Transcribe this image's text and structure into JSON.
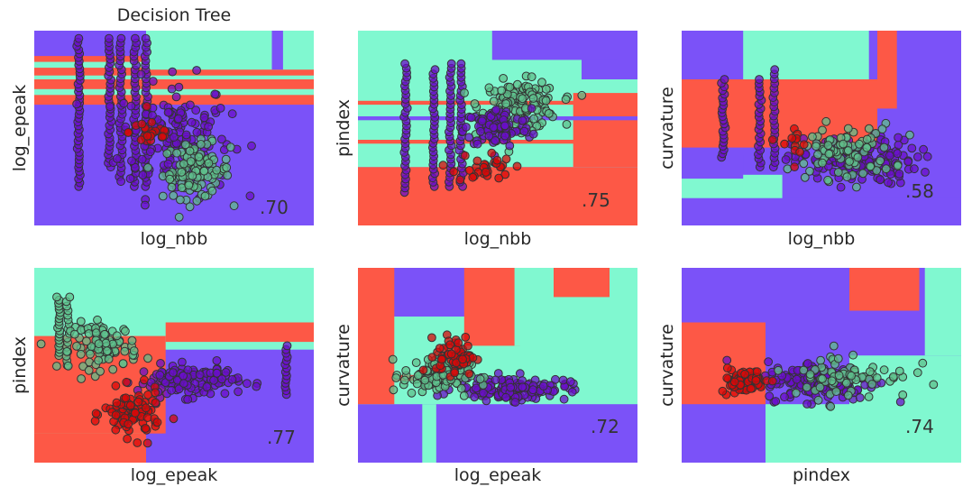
{
  "colors": {
    "class_0": "#7b52f8",
    "class_1": "#80f8d0",
    "class_2": "#fd5846",
    "dot_0": "#6a0fc8",
    "dot_1": "#5fc08c",
    "dot_2": "#d80808",
    "edge": "#333333"
  },
  "chart_data": [
    {
      "type": "scatter",
      "title": "Decision Tree",
      "xlabel": "log_nbb",
      "ylabel": "log_epeak",
      "score": ".70",
      "grid": false,
      "background": "decision-boundary",
      "regions": [
        [
          0,
          0,
          1,
          0.62,
          0
        ],
        [
          0,
          0.62,
          1,
          0.25,
          2
        ],
        [
          0,
          0.67,
          1,
          0.03,
          1
        ],
        [
          0,
          0.75,
          1,
          0.02,
          1
        ],
        [
          0,
          0.81,
          1,
          0.03,
          1
        ],
        [
          0.4,
          0.8,
          0.6,
          0.2,
          1
        ],
        [
          0,
          0.88,
          0.4,
          0.12,
          0
        ],
        [
          0.85,
          0.8,
          0.04,
          0.2,
          0
        ]
      ],
      "cols": [
        {
          "x": 0.16,
          "y0": 0.2,
          "y1": 0.96,
          "n": 40,
          "c": 0
        },
        {
          "x": 0.27,
          "y0": 0.3,
          "y1": 0.96,
          "n": 32,
          "c": 0
        },
        {
          "x": 0.31,
          "y0": 0.25,
          "y1": 0.96,
          "n": 32,
          "c": 0
        },
        {
          "x": 0.36,
          "y0": 0.2,
          "y1": 0.96,
          "n": 34,
          "c": 0
        },
        {
          "x": 0.4,
          "y0": 0.2,
          "y1": 0.96,
          "n": 34,
          "c": 0
        }
      ],
      "clusters": [
        {
          "x": 0.5,
          "y": 0.45,
          "sx": 0.2,
          "sy": 0.3,
          "n": 150,
          "c": 0
        },
        {
          "x": 0.58,
          "y": 0.28,
          "sx": 0.12,
          "sy": 0.14,
          "n": 110,
          "c": 1
        },
        {
          "x": 0.42,
          "y": 0.48,
          "sx": 0.08,
          "sy": 0.08,
          "n": 25,
          "c": 2
        }
      ]
    },
    {
      "type": "scatter",
      "title": "",
      "xlabel": "log_nbb",
      "ylabel": "pindex",
      "score": ".75",
      "grid": false,
      "background": "decision-boundary",
      "regions": [
        [
          0,
          0,
          1,
          0.3,
          2
        ],
        [
          0,
          0.3,
          1,
          0.7,
          1
        ],
        [
          0.77,
          0.3,
          0.23,
          0.38,
          2
        ],
        [
          0.8,
          0.75,
          0.2,
          0.25,
          0
        ],
        [
          0.48,
          0.85,
          0.45,
          0.15,
          0
        ],
        [
          0,
          0.42,
          1,
          0.02,
          2
        ],
        [
          0,
          0.54,
          1,
          0.02,
          0
        ],
        [
          0,
          0.62,
          1,
          0.02,
          2
        ]
      ],
      "cols": [
        {
          "x": 0.17,
          "y0": 0.17,
          "y1": 0.83,
          "n": 30,
          "c": 0
        },
        {
          "x": 0.27,
          "y0": 0.2,
          "y1": 0.8,
          "n": 28,
          "c": 0
        },
        {
          "x": 0.33,
          "y0": 0.2,
          "y1": 0.83,
          "n": 28,
          "c": 0
        },
        {
          "x": 0.37,
          "y0": 0.2,
          "y1": 0.83,
          "n": 28,
          "c": 0
        }
      ],
      "clusters": [
        {
          "x": 0.58,
          "y": 0.62,
          "sx": 0.14,
          "sy": 0.12,
          "n": 140,
          "c": 1
        },
        {
          "x": 0.5,
          "y": 0.5,
          "sx": 0.12,
          "sy": 0.1,
          "n": 110,
          "c": 0
        },
        {
          "x": 0.45,
          "y": 0.3,
          "sx": 0.1,
          "sy": 0.08,
          "n": 30,
          "c": 2
        }
      ]
    },
    {
      "type": "scatter",
      "title": "",
      "xlabel": "log_nbb",
      "ylabel": "curvature",
      "score": ".58",
      "grid": false,
      "background": "decision-boundary",
      "regions": [
        [
          0,
          0,
          1,
          0.14,
          0
        ],
        [
          0,
          0.14,
          0.36,
          0.12,
          1
        ],
        [
          0,
          0.4,
          1,
          0.35,
          2
        ],
        [
          0.7,
          0.26,
          0.3,
          0.6,
          0
        ],
        [
          0.22,
          0.75,
          0.45,
          0.25,
          1
        ],
        [
          0.7,
          0.6,
          0.07,
          0.4,
          2
        ],
        [
          0,
          0.24,
          0.22,
          0.12,
          0
        ]
      ],
      "cols": [
        {
          "x": 0.15,
          "y0": 0.35,
          "y1": 0.75,
          "n": 22,
          "c": 0
        },
        {
          "x": 0.28,
          "y0": 0.3,
          "y1": 0.75,
          "n": 22,
          "c": 0
        },
        {
          "x": 0.33,
          "y0": 0.3,
          "y1": 0.8,
          "n": 22,
          "c": 0
        }
      ],
      "clusters": [
        {
          "x": 0.62,
          "y": 0.33,
          "sx": 0.22,
          "sy": 0.12,
          "n": 150,
          "c": 0
        },
        {
          "x": 0.58,
          "y": 0.38,
          "sx": 0.18,
          "sy": 0.14,
          "n": 90,
          "c": 1
        },
        {
          "x": 0.4,
          "y": 0.42,
          "sx": 0.05,
          "sy": 0.1,
          "n": 12,
          "c": 2
        }
      ]
    },
    {
      "type": "scatter",
      "title": "",
      "xlabel": "log_epeak",
      "ylabel": "pindex",
      "score": ".77",
      "grid": false,
      "background": "decision-boundary",
      "regions": [
        [
          0,
          0,
          1,
          1,
          1
        ],
        [
          0.4,
          0,
          0.6,
          0.58,
          0
        ],
        [
          0,
          0.15,
          0.47,
          0.5,
          2
        ],
        [
          0.47,
          0.62,
          0.53,
          0.1,
          2
        ],
        [
          0,
          0,
          0.4,
          0.15,
          2
        ],
        [
          0.38,
          0.15,
          0.08,
          0.3,
          2
        ]
      ],
      "cols": [
        {
          "x": 0.09,
          "y0": 0.55,
          "y1": 0.85,
          "n": 20,
          "c": 1
        },
        {
          "x": 0.12,
          "y0": 0.5,
          "y1": 0.85,
          "n": 16,
          "c": 1
        },
        {
          "x": 0.9,
          "y0": 0.35,
          "y1": 0.6,
          "n": 14,
          "c": 0
        }
      ],
      "clusters": [
        {
          "x": 0.25,
          "y": 0.6,
          "sx": 0.12,
          "sy": 0.12,
          "n": 90,
          "c": 1
        },
        {
          "x": 0.55,
          "y": 0.42,
          "sx": 0.18,
          "sy": 0.08,
          "n": 130,
          "c": 0
        },
        {
          "x": 0.35,
          "y": 0.25,
          "sx": 0.1,
          "sy": 0.12,
          "n": 90,
          "c": 2
        }
      ]
    },
    {
      "type": "scatter",
      "title": "",
      "xlabel": "log_epeak",
      "ylabel": "curvature",
      "score": ".72",
      "grid": false,
      "background": "decision-boundary",
      "regions": [
        [
          0,
          0,
          1,
          0.3,
          0
        ],
        [
          0,
          0.3,
          1,
          0.45,
          1
        ],
        [
          0,
          0.3,
          0.13,
          0.7,
          2
        ],
        [
          0.38,
          0.6,
          0.2,
          0.4,
          2
        ],
        [
          0.56,
          0.6,
          0.44,
          0.4,
          1
        ],
        [
          0.7,
          0.85,
          0.2,
          0.15,
          2
        ],
        [
          0,
          0.42,
          0.4,
          0.03,
          2
        ],
        [
          0.23,
          0,
          0.05,
          0.3,
          1
        ]
      ],
      "cols": [],
      "clusters": [
        {
          "x": 0.55,
          "y": 0.38,
          "sx": 0.2,
          "sy": 0.06,
          "n": 150,
          "c": 0
        },
        {
          "x": 0.28,
          "y": 0.45,
          "sx": 0.12,
          "sy": 0.1,
          "n": 120,
          "c": 1
        },
        {
          "x": 0.35,
          "y": 0.55,
          "sx": 0.07,
          "sy": 0.1,
          "n": 60,
          "c": 2
        }
      ]
    },
    {
      "type": "scatter",
      "title": "",
      "xlabel": "pindex",
      "ylabel": "curvature",
      "score": ".74",
      "grid": false,
      "background": "decision-boundary",
      "regions": [
        [
          0,
          0,
          1,
          1,
          0
        ],
        [
          0,
          0.3,
          0.3,
          0.42,
          2
        ],
        [
          0.3,
          0,
          0.35,
          0.3,
          1
        ],
        [
          0.6,
          0,
          0.4,
          0.55,
          1
        ],
        [
          0.6,
          0.78,
          0.25,
          0.22,
          2
        ],
        [
          0.87,
          0.55,
          0.13,
          0.45,
          1
        ]
      ],
      "cols": [],
      "clusters": [
        {
          "x": 0.5,
          "y": 0.42,
          "sx": 0.2,
          "sy": 0.1,
          "n": 160,
          "c": 0
        },
        {
          "x": 0.6,
          "y": 0.45,
          "sx": 0.22,
          "sy": 0.12,
          "n": 70,
          "c": 1
        },
        {
          "x": 0.22,
          "y": 0.42,
          "sx": 0.08,
          "sy": 0.06,
          "n": 70,
          "c": 2
        }
      ]
    }
  ]
}
